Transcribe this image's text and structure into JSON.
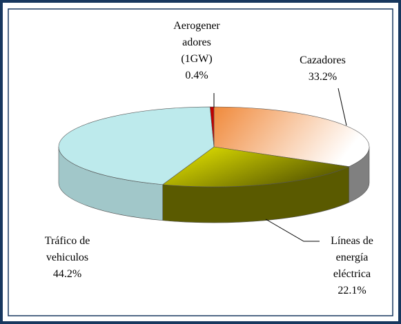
{
  "chart_data": {
    "type": "pie3d",
    "categories": [
      "Cazadores",
      "Líneas de energía eléctrica",
      "Tráfico de vehiculos",
      "Aerogeneradores (1GW)"
    ],
    "values": [
      33.2,
      22.1,
      44.2,
      0.4
    ],
    "value_labels": [
      "33.2%",
      "22.1%",
      "44.2%",
      "0.4%"
    ],
    "colors": [
      "#f08a3c",
      "#c8c800",
      "#bdeaec",
      "#c00000"
    ]
  }
}
